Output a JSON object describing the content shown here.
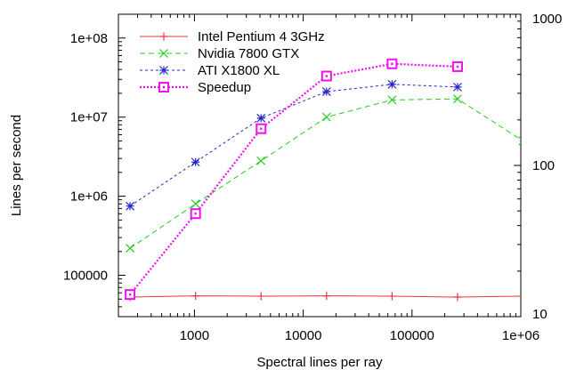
{
  "chart_data": {
    "type": "line",
    "xlabel": "Spectral lines per ray",
    "ylabel": "Lines per second",
    "x_scale": "log",
    "y_scale": "log",
    "y2_scale": "log",
    "xlim": [
      200,
      1000000
    ],
    "ylim": [
      30000,
      200000000
    ],
    "y2lim": [
      10,
      1000
    ],
    "x_ticks": [
      {
        "value": 1000,
        "label": "1000"
      },
      {
        "value": 10000,
        "label": "10000"
      },
      {
        "value": 100000,
        "label": "100000"
      },
      {
        "value": 1000000,
        "label": "1e+06"
      }
    ],
    "y_ticks": [
      {
        "value": 100000,
        "label": "100000"
      },
      {
        "value": 1000000,
        "label": "1e+06"
      },
      {
        "value": 10000000,
        "label": "1e+07"
      },
      {
        "value": 100000000,
        "label": "1e+08"
      }
    ],
    "y2_ticks": [
      {
        "value": 10,
        "label": "10"
      },
      {
        "value": 100,
        "label": "100"
      },
      {
        "value": 1000,
        "label": "1000"
      }
    ],
    "grid": false,
    "legend_position": "top-left",
    "series": [
      {
        "name": "Intel Pentium 4 3GHz",
        "axis": "left",
        "color": "#e8383b",
        "marker": "plus",
        "dash": "solid",
        "x": [
          256,
          1024,
          4096,
          16384,
          65536,
          262144,
          1048576
        ],
        "y": [
          53000,
          55000,
          54500,
          55000,
          54500,
          53000,
          54500
        ]
      },
      {
        "name": "Nvidia 7800 GTX",
        "axis": "left",
        "color": "#22cc22",
        "marker": "cross",
        "dash": "dashed",
        "x": [
          256,
          1024,
          4096,
          16384,
          65536,
          262144,
          1048576
        ],
        "y": [
          220000,
          800000,
          2800000,
          10000000,
          16500000,
          17000000,
          5000000
        ]
      },
      {
        "name": "ATI X1800 XL",
        "axis": "left",
        "color": "#2525c8",
        "marker": "star",
        "dash": "fine-dashed",
        "x": [
          256,
          1024,
          4096,
          16384,
          65536,
          262144
        ],
        "y": [
          750000,
          2700000,
          9700000,
          21000000,
          26000000,
          24000000
        ]
      },
      {
        "name": "Speedup",
        "axis": "right",
        "color": "#ee11ee",
        "marker": "square",
        "dash": "dotted",
        "x": [
          256,
          1024,
          4096,
          16384,
          65536,
          262144
        ],
        "y": [
          14,
          48,
          175,
          390,
          470,
          450
        ]
      }
    ]
  }
}
